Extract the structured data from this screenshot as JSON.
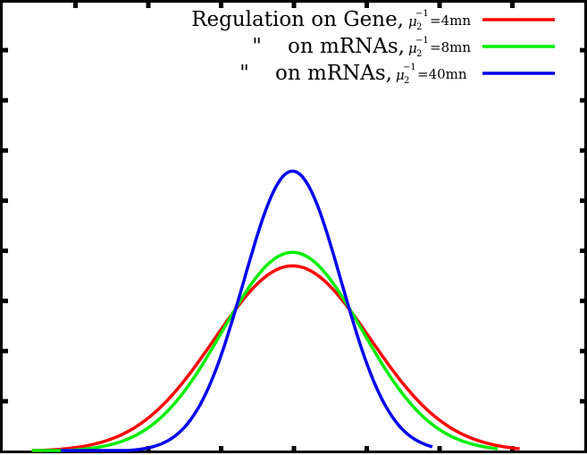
{
  "chart_data": {
    "type": "line",
    "title": "",
    "xlabel": "",
    "ylabel": "",
    "grid": false,
    "tick_labels_visible": false,
    "legend_position": "top-right",
    "xlim": [
      0,
      8
    ],
    "ylim": [
      0,
      9
    ],
    "x_ticks": [
      1,
      2,
      3,
      4,
      5,
      6,
      7
    ],
    "y_ticks": [
      1,
      2,
      3,
      4,
      5,
      6,
      7,
      8
    ],
    "series": [
      {
        "name": "Regulation on Gene, μ2^-1=4mn",
        "legend_main": "Regulation on Gene,",
        "legend_mu": "μ",
        "legend_sub": "2",
        "legend_sup": "−1",
        "legend_tail": "=4mn",
        "color": "#ff0000",
        "center": 3.98,
        "amplitude": 3.7,
        "sigma": 1.07,
        "x": [
          0.4,
          0.8,
          1.2,
          1.6,
          2.0,
          2.4,
          2.8,
          3.2,
          3.6,
          3.98,
          4.4,
          4.8,
          5.2,
          5.6,
          6.0,
          6.4,
          6.8,
          7.1
        ],
        "y": [
          0.04,
          0.14,
          0.35,
          0.68,
          1.14,
          1.78,
          2.49,
          3.15,
          3.58,
          3.7,
          3.54,
          3.08,
          2.42,
          1.73,
          1.12,
          0.64,
          0.33,
          0.05
        ]
      },
      {
        "name": "\" on mRNAs, μ2^-1=8mn",
        "legend_main": "\"    on mRNAs,",
        "legend_mu": "μ",
        "legend_sub": "2",
        "legend_sup": "−1",
        "legend_tail": "=8mn",
        "color": "#00ee00",
        "center": 3.98,
        "amplitude": 3.97,
        "sigma": 0.96,
        "x": [
          0.4,
          0.8,
          1.2,
          1.6,
          2.0,
          2.4,
          2.8,
          3.2,
          3.6,
          3.98,
          4.4,
          4.8,
          5.2,
          5.6,
          6.0,
          6.4,
          6.8
        ],
        "y": [
          0.02,
          0.07,
          0.22,
          0.51,
          0.96,
          1.66,
          2.48,
          3.32,
          3.82,
          3.97,
          3.79,
          3.22,
          2.36,
          1.54,
          0.89,
          0.42,
          0.05
        ]
      },
      {
        "name": "\" on mRNAs, μ2^-1=40mn",
        "legend_main": "\"    on mRNAs,",
        "legend_mu": "μ",
        "legend_sub": "2",
        "legend_sup": "−1",
        "legend_tail": "=40mn",
        "color": "#0000ee",
        "center": 3.98,
        "amplitude": 5.59,
        "sigma": 0.67,
        "x": [
          0.8,
          1.2,
          1.6,
          2.0,
          2.4,
          2.8,
          3.0,
          3.2,
          3.4,
          3.6,
          3.8,
          3.98,
          4.2,
          4.4,
          4.6,
          4.8,
          5.0,
          5.2,
          5.6,
          5.9
        ],
        "y": [
          0.01,
          0.03,
          0.11,
          0.34,
          0.87,
          1.85,
          2.57,
          3.36,
          4.18,
          4.91,
          5.45,
          5.59,
          5.41,
          4.97,
          4.23,
          3.37,
          2.5,
          1.74,
          0.65,
          0.05
        ]
      }
    ]
  }
}
